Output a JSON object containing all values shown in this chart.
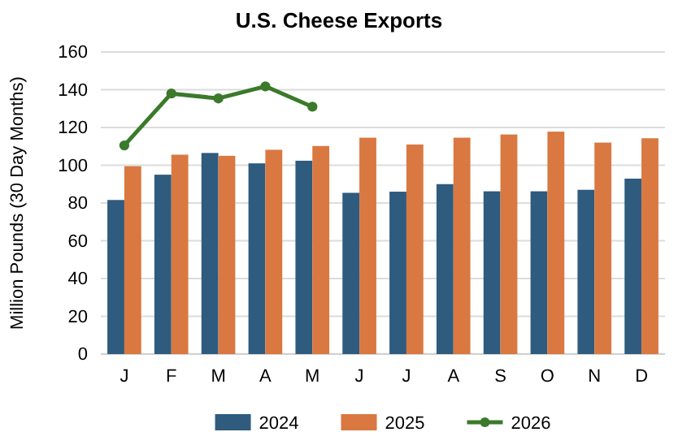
{
  "chart_data": {
    "type": "bar",
    "title": "U.S. Cheese Exports",
    "ylabel": "Million Pounds (30 Day Months)",
    "categories": [
      "J",
      "F",
      "M",
      "A",
      "M",
      "J",
      "J",
      "A",
      "S",
      "O",
      "N",
      "D"
    ],
    "series": [
      {
        "name": "2024",
        "color": "#2e5b7e",
        "values": [
          81.6,
          95,
          106.5,
          101,
          102.4,
          85.4,
          86,
          90,
          86.2,
          86.2,
          87,
          92.9
        ]
      },
      {
        "name": "2025",
        "color": "#d97841",
        "values": [
          99.5,
          105.6,
          105,
          108.2,
          110.2,
          114.6,
          111,
          114.6,
          116.3,
          117.8,
          112,
          114.3
        ]
      },
      {
        "name": "2026",
        "color": "#3a7a2a",
        "type": "line",
        "marker": "circle",
        "values": [
          110.5,
          138,
          135.4,
          141.8,
          131,
          null,
          null,
          null,
          null,
          null,
          null,
          null
        ]
      }
    ],
    "ylim": [
      0,
      160
    ],
    "yticks": [
      0,
      20,
      40,
      60,
      80,
      100,
      120,
      140,
      160
    ],
    "grid": "y",
    "legend": "bottom"
  }
}
